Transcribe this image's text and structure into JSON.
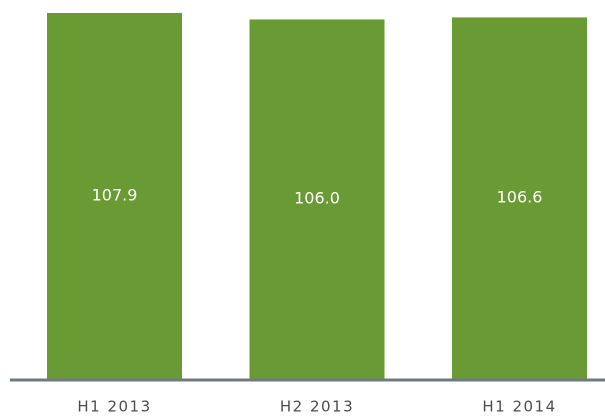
{
  "chart_data": {
    "type": "bar",
    "categories": [
      "H1 2013",
      "H2 2013",
      "H1 2014"
    ],
    "values": [
      107.9,
      106.0,
      106.6
    ],
    "value_labels": [
      "107.9",
      "106.0",
      "106.6"
    ],
    "color": "#6a9a34"
  }
}
